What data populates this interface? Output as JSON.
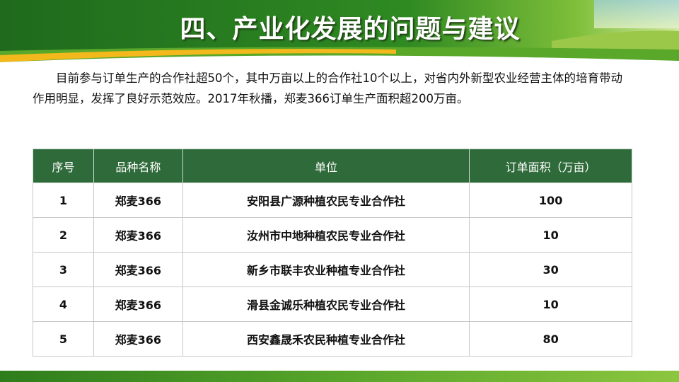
{
  "title": "四、产业化发展的问题与建议",
  "intro": "目前参与订单生产的合作社超50个，其中万亩以上的合作社10个以上，对省内外新型农业经营主体的培育带动作用明显，发挥了良好示范效应。2017年秋播，郑麦366订单生产面积超200万亩。",
  "table": {
    "headers": [
      "序号",
      "品种名称",
      "单位",
      "订单面积（万亩）"
    ],
    "rows": [
      [
        "1",
        "郑麦366",
        "安阳县广源种植农民专业合作社",
        "100"
      ],
      [
        "2",
        "郑麦366",
        "汝州市中地种植农民专业合作社",
        "10"
      ],
      [
        "3",
        "郑麦366",
        "新乡市联丰农业种植专业合作社",
        "30"
      ],
      [
        "4",
        "郑麦366",
        "滑县金诚乐种植农民专业合作社",
        "10"
      ],
      [
        "5",
        "郑麦366",
        "西安鑫晟禾农民种植专业合作社",
        "80"
      ]
    ]
  },
  "colors": {
    "header_green": "#2f6b3a",
    "banner_green": "#2a7a1e",
    "accent_yellow": "#f2b81c"
  }
}
